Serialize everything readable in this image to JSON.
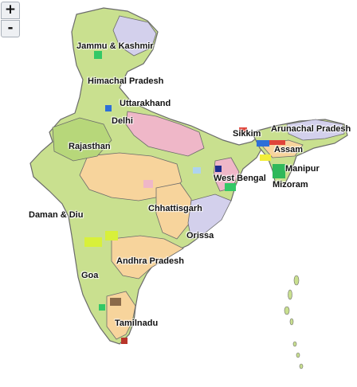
{
  "controls": {
    "zoom_in": "+",
    "zoom_out": "-"
  },
  "colors": {
    "land_green": "#c9e08f",
    "land_peach": "#f7d49c",
    "land_pink": "#efb7c8",
    "land_lavender": "#d3d0ec",
    "land_blue": "#aed3ef",
    "border": "#6b6b6b",
    "district": "#9aa6b3"
  },
  "labels": {
    "jammu_kashmir": "Jammu & Kashmir",
    "himachal": "Himachal Pradesh",
    "uttarakhand": "Uttarakhand",
    "delhi": "Delhi",
    "rajasthan": "Rajasthan",
    "sikkim": "Sikkim",
    "arunachal": "Arunachal Pradesh",
    "assam": "Assam",
    "west_bengal": "West Bengal",
    "manipur": "Manipur",
    "mizoram": "Mizoram",
    "daman_diu": "Daman & Diu",
    "chhattisgarh": "Chhattisgarh",
    "orissa": "Orissa",
    "andhra": "Andhra Pradesh",
    "goa": "Goa",
    "tamilnadu": "Tamilnadu"
  }
}
